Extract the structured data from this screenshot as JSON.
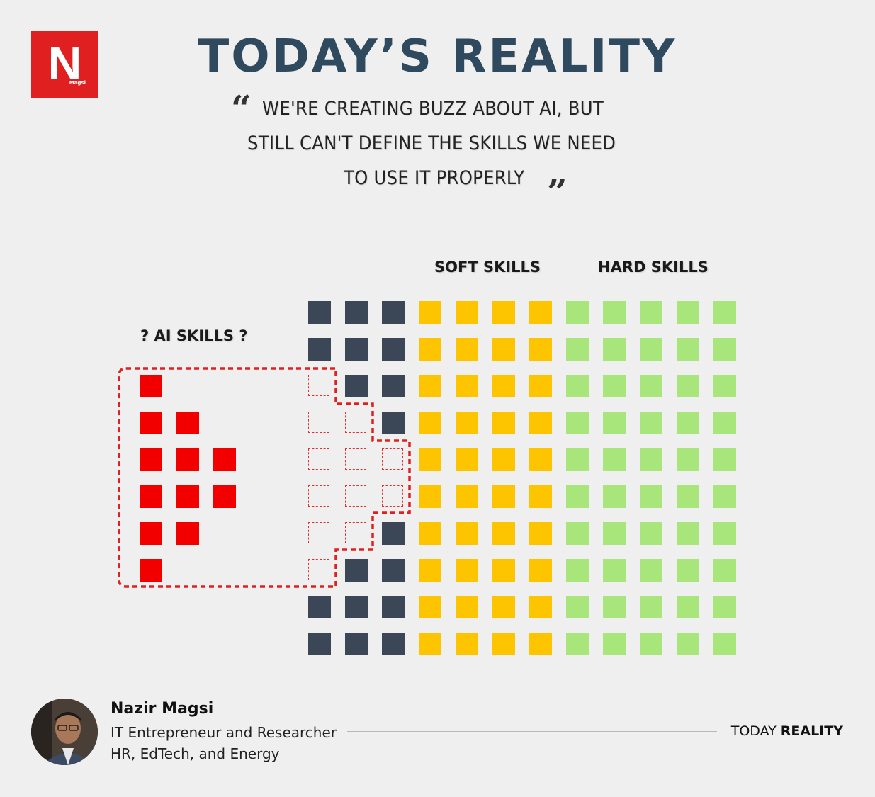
{
  "logo": {
    "letter": "N",
    "sub": "Magsi"
  },
  "title": "TODAY’S REALITY",
  "quote": {
    "open_mark": "“",
    "close_mark": "”",
    "lines": [
      "WE'RE CREATING BUZZ ABOUT AI, BUT",
      "STILL CAN'T DEFINE THE SKILLS WE NEED",
      "TO USE IT PROPERLY"
    ]
  },
  "labels": {
    "soft": "SOFT SKILLS",
    "hard": "HARD SKILLS",
    "ai": "? AI SKILLS ?"
  },
  "grid": {
    "rows": 10,
    "dark_cols": 3,
    "soft_cols": 4,
    "hard_cols": 5,
    "ai_row_counts": [
      1,
      2,
      3,
      3,
      2,
      1
    ],
    "ai_start_row": 2,
    "colors": {
      "dark": "#3b4656",
      "soft": "#fcc500",
      "hard": "#a8e67c",
      "ai": "#f20000"
    }
  },
  "author": {
    "name": "Nazir Magsi",
    "line1": "IT Entrepreneur and Researcher",
    "line2": "HR, EdTech, and Energy"
  },
  "footer": {
    "normal": "TODAY ",
    "bold": "REALITY"
  }
}
